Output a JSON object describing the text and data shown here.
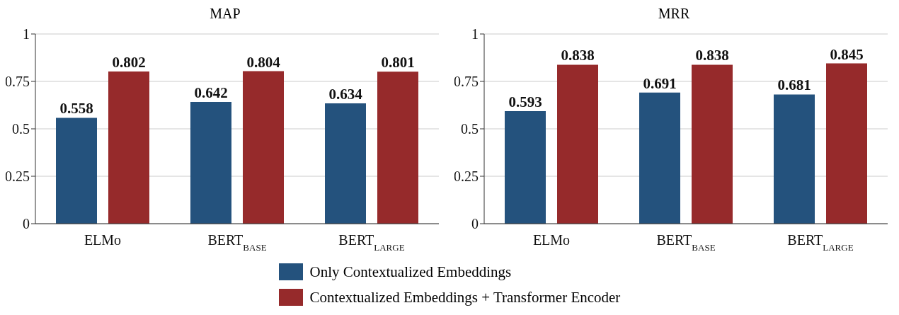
{
  "chart_data": [
    {
      "type": "bar",
      "title": "MAP",
      "categories": [
        "ELMo",
        "BERT$_{BASE}$",
        "BERT$_{LARGE}$"
      ],
      "series": [
        {
          "name": "Only Contextualized Embeddings",
          "color": "#24527d",
          "values": [
            0.558,
            0.642,
            0.634
          ]
        },
        {
          "name": "Contextualized Embeddings + Transformer Encoder",
          "color": "#962a2b",
          "values": [
            0.802,
            0.804,
            0.801
          ]
        }
      ],
      "ylim": [
        0,
        1
      ],
      "yticks": [
        0,
        0.25,
        0.5,
        0.75,
        1
      ],
      "grid": "y",
      "data_labels": true,
      "legend": "bottom"
    },
    {
      "type": "bar",
      "title": "MRR",
      "categories": [
        "ELMo",
        "BERT$_{BASE}$",
        "BERT$_{LARGE}$"
      ],
      "series": [
        {
          "color": "#24527d",
          "values": [
            0.593,
            0.691,
            0.681
          ]
        },
        {
          "color": "#962a2b",
          "values": [
            0.838,
            0.838,
            0.845
          ]
        }
      ],
      "ylim": [
        0,
        1
      ],
      "yticks": [
        0,
        0.25,
        0.5,
        0.75,
        1
      ],
      "grid": "y",
      "data_labels": true
    }
  ]
}
